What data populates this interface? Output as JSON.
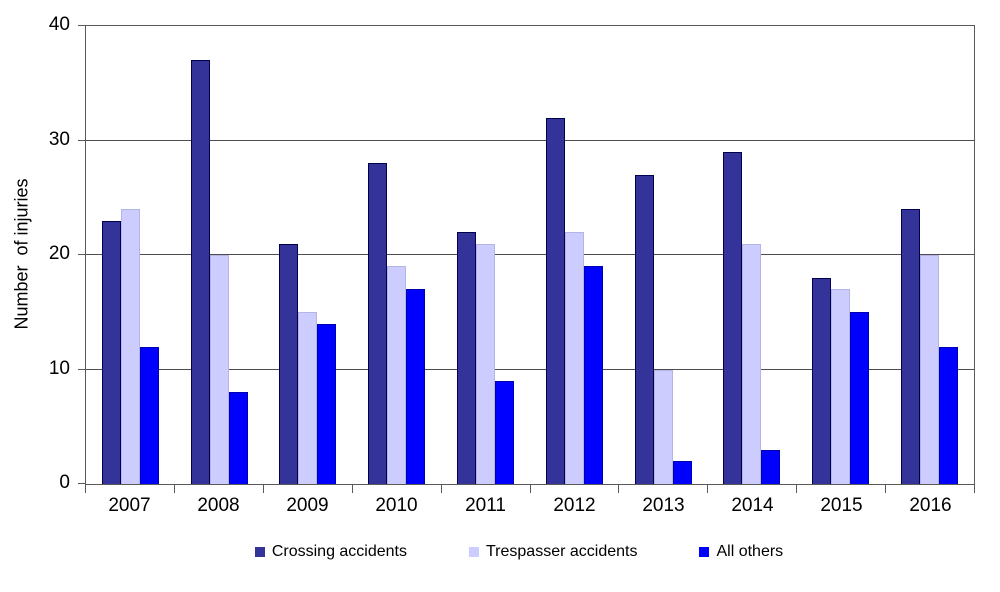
{
  "chart_data": {
    "type": "bar",
    "title": "",
    "xlabel": "",
    "ylabel": "Number  of injuries",
    "ylim": [
      0,
      40
    ],
    "yticks": [
      0,
      10,
      20,
      30,
      40
    ],
    "grid": true,
    "legend_position": "bottom",
    "categories": [
      "2007",
      "2008",
      "2009",
      "2010",
      "2011",
      "2012",
      "2013",
      "2014",
      "2015",
      "2016"
    ],
    "series": [
      {
        "name": "Crossing accidents",
        "key": "crossing-accidents",
        "color": "#333399",
        "border_color": "#00004d",
        "values": [
          23,
          37,
          21,
          28,
          22,
          32,
          27,
          29,
          18,
          24
        ]
      },
      {
        "name": "Trespasser accidents",
        "key": "trespasser-accidents",
        "color": "#ccccff",
        "border_color": "#b4b4e6",
        "values": [
          24,
          20,
          15,
          19,
          21,
          22,
          10,
          21,
          17,
          20
        ]
      },
      {
        "name": "All others",
        "key": "all-others",
        "color": "#0000ff",
        "border_color": "#0000b3",
        "values": [
          12,
          8,
          14,
          17,
          9,
          19,
          2,
          3,
          15,
          12
        ]
      }
    ]
  },
  "colors": {
    "gridline": "#4d4d4d",
    "axis": "#595959",
    "background": "#ffffff",
    "text": "#000000"
  }
}
